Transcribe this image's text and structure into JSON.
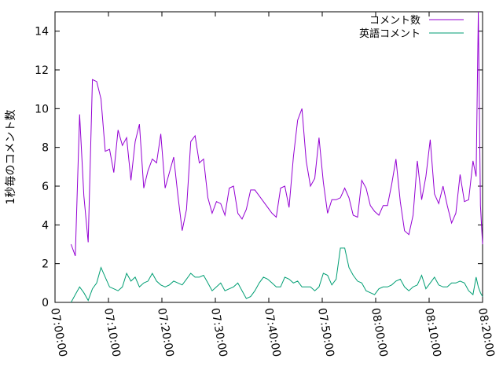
{
  "chart_data": {
    "type": "line",
    "title": "",
    "xlabel": "",
    "ylabel": "1秒毎のコメント数",
    "xlim": [
      "07:00:00",
      "08:20:00"
    ],
    "ylim": [
      0,
      15
    ],
    "yticks": [
      0,
      2,
      4,
      6,
      8,
      10,
      12,
      14
    ],
    "xticks": [
      "07:00:00",
      "07:10:00",
      "07:20:00",
      "07:30:00",
      "07:40:00",
      "07:50:00",
      "08:00:00",
      "08:10:00",
      "08:20:00"
    ],
    "grid": false,
    "legend_position": "top-right",
    "x": [
      "07:03:00",
      "07:03:48",
      "07:04:36",
      "07:05:24",
      "07:06:12",
      "07:07:00",
      "07:07:48",
      "07:08:36",
      "07:09:24",
      "07:10:12",
      "07:11:00",
      "07:11:48",
      "07:12:36",
      "07:13:24",
      "07:14:12",
      "07:15:00",
      "07:15:48",
      "07:16:36",
      "07:17:24",
      "07:18:12",
      "07:19:00",
      "07:19:48",
      "07:20:36",
      "07:21:24",
      "07:22:12",
      "07:23:00",
      "07:23:48",
      "07:24:36",
      "07:25:24",
      "07:26:12",
      "07:27:00",
      "07:27:48",
      "07:28:36",
      "07:29:24",
      "07:30:12",
      "07:31:00",
      "07:31:48",
      "07:32:36",
      "07:33:24",
      "07:34:12",
      "07:35:00",
      "07:35:48",
      "07:36:36",
      "07:37:24",
      "07:38:12",
      "07:39:00",
      "07:39:48",
      "07:40:36",
      "07:41:24",
      "07:42:12",
      "07:43:00",
      "07:43:48",
      "07:44:36",
      "07:45:24",
      "07:46:12",
      "07:47:00",
      "07:47:48",
      "07:48:36",
      "07:49:24",
      "07:50:12",
      "07:51:00",
      "07:51:48",
      "07:52:36",
      "07:53:24",
      "07:54:12",
      "07:55:00",
      "07:55:48",
      "07:56:36",
      "07:57:24",
      "07:58:12",
      "07:59:00",
      "07:59:48",
      "08:00:36",
      "08:01:24",
      "08:02:12",
      "08:03:00",
      "08:03:48",
      "08:04:36",
      "08:05:24",
      "08:06:12",
      "08:07:00",
      "08:07:48",
      "08:08:36",
      "08:09:24",
      "08:10:12",
      "08:11:00",
      "08:11:48",
      "08:12:36",
      "08:13:24",
      "08:14:12",
      "08:15:00",
      "08:15:48",
      "08:16:36",
      "08:17:24",
      "08:18:12"
    ],
    "series": [
      {
        "name": "コメント数",
        "color": "#9400d3",
        "values": [
          3.0,
          2.4,
          9.7,
          5.5,
          3.1,
          11.5,
          11.4,
          10.5,
          7.8,
          7.9,
          6.7,
          8.9,
          8.1,
          8.5,
          6.3,
          8.3,
          9.2,
          5.9,
          6.8,
          7.4,
          7.2,
          8.7,
          5.9,
          6.7,
          7.5,
          5.5,
          3.7,
          4.8,
          8.3,
          8.6,
          7.2,
          7.4,
          5.4,
          4.6,
          5.2,
          5.1,
          4.5,
          5.9,
          6.0,
          4.6,
          4.3,
          4.8,
          5.8,
          5.8,
          5.5,
          5.2,
          4.9,
          4.6,
          4.4,
          5.9,
          6.0,
          4.9,
          7.5,
          9.4,
          10.0,
          7.3,
          6.0,
          6.4,
          8.5,
          6.2,
          4.6,
          5.3,
          5.3,
          5.4,
          5.9,
          5.4,
          4.5,
          4.4,
          6.3,
          5.9,
          5.0,
          4.7,
          4.5,
          5.0,
          5.0,
          6.1,
          7.4,
          5.2,
          3.7,
          3.5,
          4.5,
          7.3,
          5.3,
          6.5,
          8.4,
          5.6,
          5.1,
          6.0,
          5.0,
          4.1,
          4.6,
          6.6,
          5.2,
          5.3,
          7.3
        ]
      },
      {
        "name": "英語コメント",
        "color": "#009e73",
        "values": [
          0.0,
          0.4,
          0.8,
          0.5,
          0.1,
          0.7,
          1.0,
          1.8,
          1.3,
          0.8,
          0.7,
          0.6,
          0.8,
          1.5,
          1.1,
          1.3,
          0.8,
          1.0,
          1.1,
          1.5,
          1.1,
          0.9,
          0.8,
          0.9,
          1.1,
          1.0,
          0.9,
          1.2,
          1.5,
          1.3,
          1.3,
          1.4,
          1.0,
          0.6,
          0.8,
          1.0,
          0.6,
          0.7,
          0.8,
          1.0,
          0.6,
          0.2,
          0.3,
          0.6,
          1.0,
          1.3,
          1.2,
          1.0,
          0.8,
          0.8,
          1.3,
          1.2,
          1.0,
          1.1,
          0.8,
          0.8,
          0.8,
          0.6,
          0.8,
          1.5,
          1.4,
          0.9,
          1.2,
          2.8,
          2.8,
          1.8,
          1.4,
          1.1,
          1.0,
          0.6,
          0.5,
          0.4,
          0.7,
          0.8,
          0.8,
          0.9,
          1.1,
          1.2,
          0.8,
          0.6,
          0.8,
          0.9,
          1.4,
          0.7,
          1.0,
          1.3,
          0.9,
          0.8,
          0.8,
          1.0,
          1.0,
          1.1,
          1.0,
          0.6,
          0.4
        ]
      }
    ],
    "extra_tail": {
      "x": [
        "08:18:12",
        "08:18:48",
        "08:19:12",
        "08:19:36",
        "08:20:00"
      ],
      "series0": [
        7.3,
        6.5,
        15.0,
        5.0,
        3.0
      ],
      "series1": [
        0.4,
        1.3,
        0.8,
        0.5,
        0.3
      ]
    }
  }
}
